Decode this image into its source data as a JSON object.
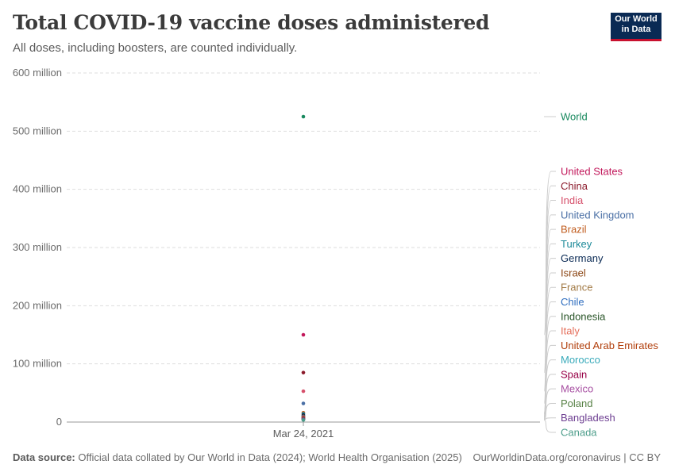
{
  "header": {
    "title": "Total COVID-19 vaccine doses administered",
    "subtitle": "All doses, including boosters, are counted individually."
  },
  "logo": {
    "line1": "Our World",
    "line2": "in Data"
  },
  "footer": {
    "source_label": "Data source:",
    "source_text": "Official data collated by Our World in Data (2024); World Health Organisation (2025)",
    "url": "OurWorldinData.org/coronavirus | CC BY"
  },
  "chart_data": {
    "type": "scatter",
    "title": "Total COVID-19 vaccine doses administered",
    "subtitle": "All doses, including boosters, are counted individually.",
    "x": [
      "Mar 24, 2021"
    ],
    "ylim": [
      0,
      600000000
    ],
    "yticks": [
      0,
      100000000,
      200000000,
      300000000,
      400000000,
      500000000,
      600000000
    ],
    "ytick_labels": [
      "0",
      "100 million",
      "200 million",
      "300 million",
      "400 million",
      "500 million",
      "600 million"
    ],
    "grid": true,
    "legend": "right",
    "series": [
      {
        "name": "World",
        "values": [
          525000000
        ],
        "color": "#18895e"
      },
      {
        "name": "United States",
        "values": [
          150000000
        ],
        "color": "#c2185b"
      },
      {
        "name": "China",
        "values": [
          85000000
        ],
        "color": "#8b1a2b"
      },
      {
        "name": "India",
        "values": [
          53000000
        ],
        "color": "#d6506b"
      },
      {
        "name": "United Kingdom",
        "values": [
          32000000
        ],
        "color": "#4a6fa5"
      },
      {
        "name": "Brazil",
        "values": [
          16000000
        ],
        "color": "#c15d1f"
      },
      {
        "name": "Turkey",
        "values": [
          14000000
        ],
        "color": "#1d8a99"
      },
      {
        "name": "Germany",
        "values": [
          12000000
        ],
        "color": "#0a2a54"
      },
      {
        "name": "Israel",
        "values": [
          10000000
        ],
        "color": "#8b4513"
      },
      {
        "name": "France",
        "values": [
          9000000
        ],
        "color": "#a27a45"
      },
      {
        "name": "Chile",
        "values": [
          9000000
        ],
        "color": "#2f6ebf"
      },
      {
        "name": "Indonesia",
        "values": [
          8000000
        ],
        "color": "#285427"
      },
      {
        "name": "Italy",
        "values": [
          8000000
        ],
        "color": "#e56e5a"
      },
      {
        "name": "United Arab Emirates",
        "values": [
          7500000
        ],
        "color": "#b13e0b"
      },
      {
        "name": "Morocco",
        "values": [
          6000000
        ],
        "color": "#38aaba"
      },
      {
        "name": "Spain",
        "values": [
          6000000
        ],
        "color": "#970046"
      },
      {
        "name": "Mexico",
        "values": [
          5000000
        ],
        "color": "#a64ea1"
      },
      {
        "name": "Poland",
        "values": [
          5000000
        ],
        "color": "#578145"
      },
      {
        "name": "Bangladesh",
        "values": [
          4500000
        ],
        "color": "#6d3e91"
      },
      {
        "name": "Canada",
        "values": [
          3500000
        ],
        "color": "#4c9d8a"
      }
    ]
  }
}
